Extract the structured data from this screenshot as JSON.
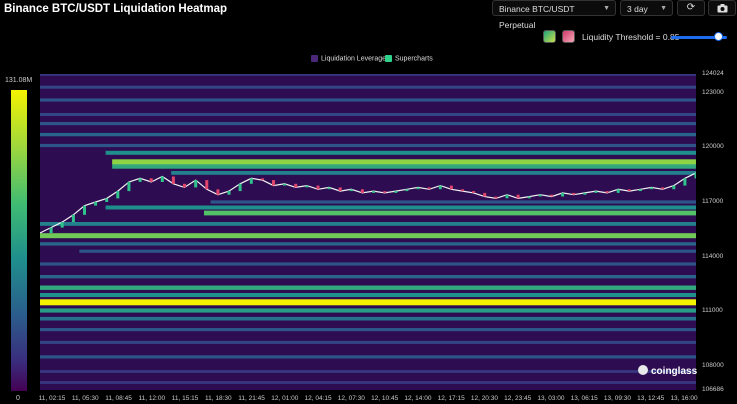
{
  "header": {
    "title": "Binance BTC/USDT Liquidation Heatmap",
    "pair_select": "Binance BTC/USDT Perpetual",
    "range_select": "3 day",
    "refresh_icon": "refresh-icon",
    "camera_icon": "camera-icon"
  },
  "controls": {
    "threshold_label": "Liquidity Threshold = 0.85",
    "threshold_value": 0.85,
    "swatch_a_colors": [
      "#1fa37a",
      "#c9e04a"
    ],
    "swatch_b_colors": [
      "#d13a6b",
      "#f4a6b6"
    ]
  },
  "legend": [
    {
      "label": "Liquidation Leverage",
      "color": "#4a2778"
    },
    {
      "label": "Supercharts",
      "color": "#2fd28a"
    }
  ],
  "colorbar": {
    "max_label": "131.08M",
    "min_label": "0"
  },
  "watermark": "coinglass",
  "chart_data": {
    "type": "heatmap",
    "title": "Binance BTC/USDT Liquidation Heatmap",
    "ylim": [
      106686,
      124024
    ],
    "y_ticks": [
      "124024",
      "123000",
      "120000",
      "117000",
      "114000",
      "111000",
      "108000",
      "106686"
    ],
    "x_ticks": [
      "11, 02:15",
      "11, 05:30",
      "11, 08:45",
      "11, 12:00",
      "11, 15:15",
      "11, 18:30",
      "11, 21:45",
      "12, 01:00",
      "12, 04:15",
      "12, 07:30",
      "12, 10:45",
      "12, 14:00",
      "12, 17:15",
      "12, 20:30",
      "12, 23:45",
      "13, 03:00",
      "13, 06:15",
      "13, 09:30",
      "13, 12:45",
      "13, 16:00"
    ],
    "colorscale": [
      "#440154",
      "#3a2d7d",
      "#2a5f8c",
      "#1f8f8c",
      "#3fbb73",
      "#a2d83a",
      "#f4f300"
    ],
    "liquidation_levels": [
      {
        "price": 124000,
        "intensity": 0.2,
        "from": 0.0
      },
      {
        "price": 123300,
        "intensity": 0.25,
        "from": 0.0
      },
      {
        "price": 122600,
        "intensity": 0.3,
        "from": 0.0
      },
      {
        "price": 121800,
        "intensity": 0.25,
        "from": 0.0
      },
      {
        "price": 121300,
        "intensity": 0.3,
        "from": 0.0
      },
      {
        "price": 120700,
        "intensity": 0.35,
        "from": 0.0
      },
      {
        "price": 120100,
        "intensity": 0.3,
        "from": 0.0
      },
      {
        "price": 119700,
        "intensity": 0.5,
        "from": 0.1
      },
      {
        "price": 119200,
        "intensity": 0.8,
        "from": 0.11
      },
      {
        "price": 118950,
        "intensity": 0.6,
        "from": 0.11
      },
      {
        "price": 118600,
        "intensity": 0.45,
        "from": 0.2
      },
      {
        "price": 117000,
        "intensity": 0.3,
        "from": 0.26
      },
      {
        "price": 116700,
        "intensity": 0.5,
        "from": 0.1
      },
      {
        "price": 116400,
        "intensity": 0.7,
        "from": 0.25
      },
      {
        "price": 115800,
        "intensity": 0.45,
        "from": 0.0
      },
      {
        "price": 115150,
        "intensity": 0.75,
        "from": 0.0
      },
      {
        "price": 114700,
        "intensity": 0.35,
        "from": 0.0
      },
      {
        "price": 114300,
        "intensity": 0.3,
        "from": 0.06
      },
      {
        "price": 113600,
        "intensity": 0.3,
        "from": 0.0
      },
      {
        "price": 112900,
        "intensity": 0.35,
        "from": 0.0
      },
      {
        "price": 112300,
        "intensity": 0.6,
        "from": 0.0
      },
      {
        "price": 111900,
        "intensity": 0.5,
        "from": 0.0
      },
      {
        "price": 111500,
        "intensity": 1.0,
        "from": 0.0
      },
      {
        "price": 111050,
        "intensity": 0.55,
        "from": 0.0
      },
      {
        "price": 110600,
        "intensity": 0.4,
        "from": 0.0
      },
      {
        "price": 110000,
        "intensity": 0.3,
        "from": 0.0
      },
      {
        "price": 109300,
        "intensity": 0.25,
        "from": 0.0
      },
      {
        "price": 108500,
        "intensity": 0.3,
        "from": 0.0
      },
      {
        "price": 107700,
        "intensity": 0.2,
        "from": 0.0
      },
      {
        "price": 107100,
        "intensity": 0.2,
        "from": 0.0
      }
    ],
    "price_series": [
      115300,
      115600,
      115900,
      116300,
      116800,
      117000,
      117200,
      117600,
      118100,
      118300,
      118100,
      118400,
      118000,
      117800,
      118200,
      117700,
      117400,
      117600,
      118000,
      118300,
      118200,
      117900,
      118000,
      117800,
      117900,
      117700,
      117800,
      117600,
      117700,
      117500,
      117600,
      117500,
      117600,
      117700,
      117800,
      117700,
      117900,
      117700,
      117600,
      117500,
      117300,
      117200,
      117400,
      117200,
      117300,
      117400,
      117300,
      117500,
      117400,
      117500,
      117600,
      117500,
      117700,
      117600,
      117700,
      117800,
      117700,
      117900,
      118300,
      118600
    ]
  }
}
